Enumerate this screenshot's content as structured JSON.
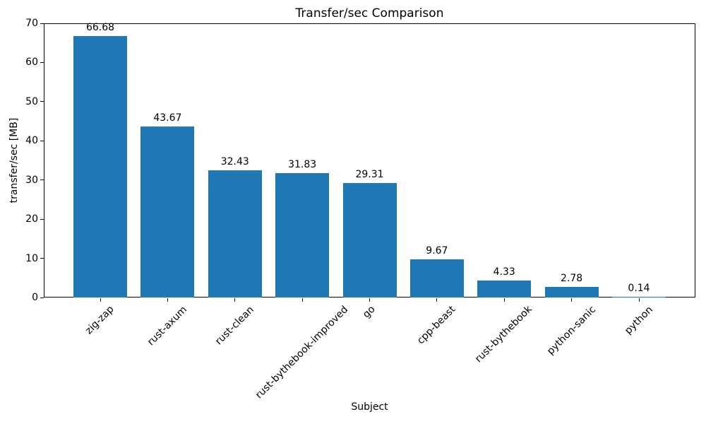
{
  "chart_data": {
    "type": "bar",
    "title": "Transfer/sec Comparison",
    "xlabel": "Subject",
    "ylabel": "transfer/sec [MB]",
    "categories": [
      "zig-zap",
      "rust-axum",
      "rust-clean",
      "rust-bythebook-improved",
      "go",
      "cpp-beast",
      "rust-bythebook",
      "python-sanic",
      "python"
    ],
    "values": [
      66.68,
      43.67,
      32.43,
      31.83,
      29.31,
      9.67,
      4.33,
      2.78,
      0.14
    ],
    "value_labels": [
      "66.68",
      "43.67",
      "32.43",
      "31.83",
      "29.31",
      "9.67",
      "4.33",
      "2.78",
      "0.14"
    ],
    "ylim": [
      0,
      70
    ],
    "yticks": [
      0,
      10,
      20,
      30,
      40,
      50,
      60,
      70
    ],
    "bar_color": "#1f77b4",
    "spine_color": "#000000",
    "grid": false,
    "legend_position": "none"
  }
}
